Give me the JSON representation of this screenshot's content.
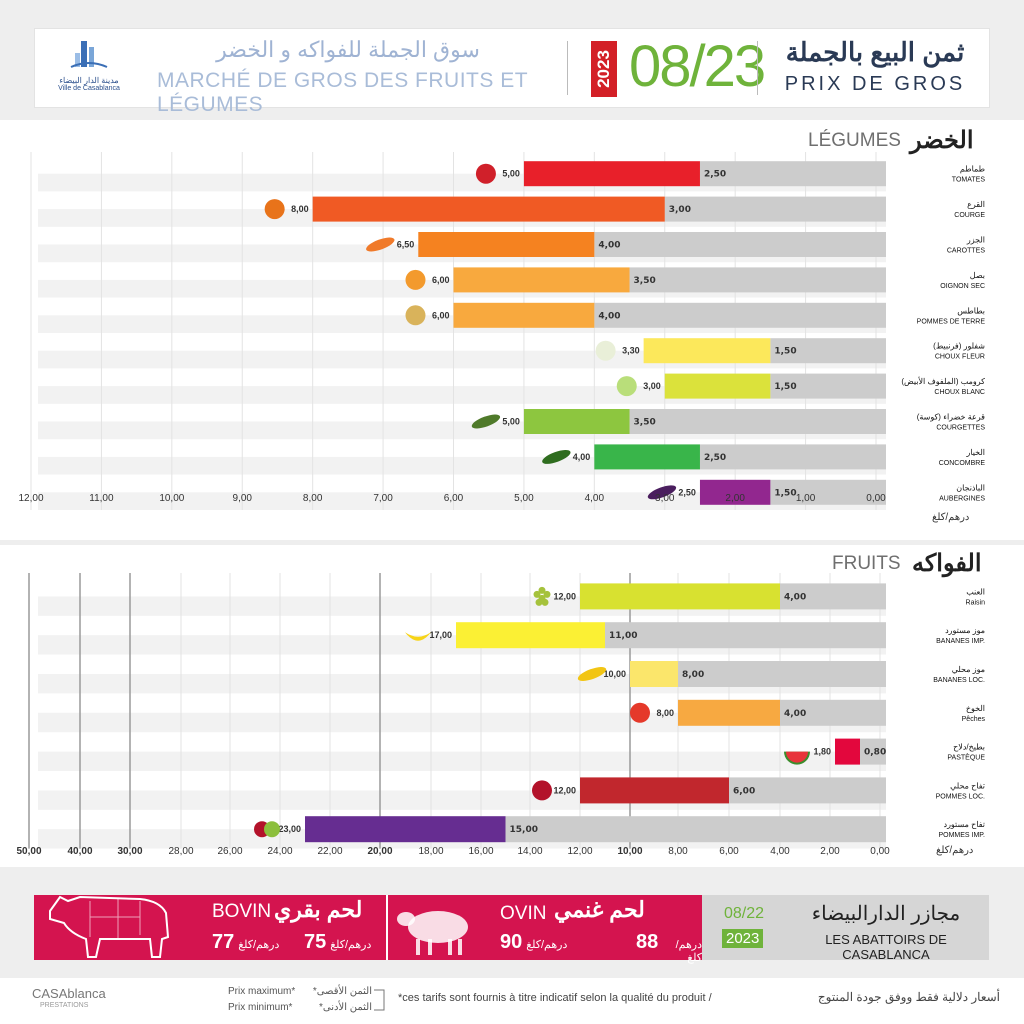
{
  "header": {
    "logo_ar": "مدينة الدار البيضاء",
    "logo_fr": "Ville de Casablanca",
    "market_ar": "سوق الجملة للفواكه و الخضر",
    "market_fr": "MARCHÉ DE GROS DES FRUITS ET LÉGUMES",
    "year": "2023",
    "date": "08/23",
    "price_ar": "ثمن البيع بالجملة",
    "price_fr": "PRIX DE GROS"
  },
  "colors": {
    "date_green": "#6fb33b",
    "year_red": "#d32027",
    "meat_red": "#d4144f",
    "track_grey": "#cccccc"
  },
  "chart_data": [
    {
      "type": "bar",
      "section_ar": "الخضر",
      "section_fr": "LÉGUMES",
      "unit": "درهم/كلغ",
      "xlim": [
        0,
        12
      ],
      "ticks": [
        "12,00",
        "11,00",
        "10,00",
        "9,00",
        "8,00",
        "7,00",
        "6,00",
        "5,00",
        "4,00",
        "3,00",
        "2,00",
        "1,00",
        "0,00"
      ],
      "categories": [
        {
          "ar": "طماطم",
          "fr": "TOMATES",
          "max": 5.0,
          "min": 2.5,
          "max_label": "5,00",
          "min_label": "2,50",
          "color": "#e8202a",
          "icon": "tomato-icon"
        },
        {
          "ar": "القرع",
          "fr": "COURGE",
          "max": 8.0,
          "min": 3.0,
          "max_label": "8,00",
          "min_label": "3,00",
          "color": "#f05a24",
          "icon": "pumpkin-icon"
        },
        {
          "ar": "الجزر",
          "fr": "CAROTTES",
          "max": 6.5,
          "min": 4.0,
          "max_label": "6,50",
          "min_label": "4,00",
          "color": "#f58220",
          "icon": "carrot-icon"
        },
        {
          "ar": "بصل",
          "fr": "OIGNON SEC",
          "max": 6.0,
          "min": 3.5,
          "max_label": "6,00",
          "min_label": "3,50",
          "color": "#f8a93e",
          "icon": "onion-icon"
        },
        {
          "ar": "بطاطس",
          "fr": "POMMES DE TERRE",
          "max": 6.0,
          "min": 4.0,
          "max_label": "6,00",
          "min_label": "4,00",
          "color": "#f8a93e",
          "icon": "potato-icon"
        },
        {
          "ar": "شفلور (فرنبيط)",
          "fr": "CHOUX FLEUR",
          "max": 3.3,
          "min": 1.5,
          "max_label": "3,30",
          "min_label": "1,50",
          "color": "#fce85b",
          "icon": "cauliflower-icon"
        },
        {
          "ar": "كرومب (الملفوف الأبيض)",
          "fr": "CHOUX BLANC",
          "max": 3.0,
          "min": 1.5,
          "max_label": "3,00",
          "min_label": "1,50",
          "color": "#dbe23b",
          "icon": "cabbage-icon"
        },
        {
          "ar": "قرعة خضراء (كوسة)",
          "fr": "COURGETTES",
          "max": 5.0,
          "min": 3.5,
          "max_label": "5,00",
          "min_label": "3,50",
          "color": "#8dc63f",
          "icon": "zucchini-icon"
        },
        {
          "ar": "الخيار",
          "fr": "CONCOMBRE",
          "max": 4.0,
          "min": 2.5,
          "max_label": "4,00",
          "min_label": "2,50",
          "color": "#39b54a",
          "icon": "cucumber-icon"
        },
        {
          "ar": "الباذنجان",
          "fr": "AUBERGINES",
          "max": 2.5,
          "min": 1.5,
          "max_label": "2,50",
          "min_label": "1,50",
          "color": "#92278f",
          "icon": "eggplant-icon"
        }
      ]
    },
    {
      "type": "bar",
      "section_ar": "الفواكه",
      "section_fr": "FRUITS",
      "unit": "درهم/كلغ",
      "xlim": [
        0,
        50
      ],
      "ticks": [
        "50,00",
        "40,00",
        "30,00",
        "28,00",
        "26,00",
        "24,00",
        "22,00",
        "20,00",
        "18,00",
        "16,00",
        "14,00",
        "12,00",
        "10,00",
        "8,00",
        "6,00",
        "4,00",
        "2,00",
        "0,00"
      ],
      "categories": [
        {
          "ar": "العنب",
          "fr": "Raisin",
          "max": 12.0,
          "min": 4.0,
          "max_label": "12,00",
          "min_label": "4,00",
          "color": "#d8e130",
          "icon": "grapes-icon"
        },
        {
          "ar": "موز مستورد",
          "fr": "BANANES IMP.",
          "max": 17.0,
          "min": 11.0,
          "max_label": "17,00",
          "min_label": "11,00",
          "color": "#fbf034",
          "icon": "bananas-icon"
        },
        {
          "ar": "موز محلي",
          "fr": "BANANES LOC.",
          "max": 10.0,
          "min": 8.0,
          "max_label": "10,00",
          "min_label": "8,00",
          "color": "#fbe66b",
          "icon": "banana-icon"
        },
        {
          "ar": "الخوخ",
          "fr": "Pêches",
          "max": 8.0,
          "min": 4.0,
          "max_label": "8,00",
          "min_label": "4,00",
          "color": "#f7a941",
          "icon": "peach-icon"
        },
        {
          "ar": "بطيخ/دلاح",
          "fr": "PASTÈQUE",
          "max": 1.8,
          "min": 0.8,
          "max_label": "1,80",
          "min_label": "0,80",
          "color": "#e3073d",
          "icon": "watermelon-icon"
        },
        {
          "ar": "تفاح محلي",
          "fr": "POMMES LOC.",
          "max": 12.0,
          "min": 6.0,
          "max_label": "12,00",
          "min_label": "6,00",
          "color": "#c1272d",
          "icon": "apple-icon"
        },
        {
          "ar": "تفاح مستورد",
          "fr": "POMMES IMP.",
          "max": 23.0,
          "min": 15.0,
          "max_label": "23,00",
          "min_label": "15,00",
          "color": "#662d91",
          "icon": "apples-icon"
        }
      ]
    }
  ],
  "meat": {
    "bovin_fr": "BOVIN",
    "bovin_ar": "لحم بقري",
    "bovin_price": "75",
    "bovin_unit": "درهم/كلغ",
    "bovin_prev": "77",
    "bovin_prev_unit": "درهم/كلغ",
    "ovin_fr": "OVIN",
    "ovin_ar": "لحم غنمي",
    "ovin_price": "88",
    "ovin_unit": "درهم/كلغ",
    "ovin_prev": "90",
    "ovin_prev_unit": "درهم/كلغ",
    "abattoir_date": "08/22",
    "abattoir_year": "2023",
    "abattoir_ar": "مجازر الدارالبيضاء",
    "abattoir_fr": "LES ABATTOIRS DE CASABLANCA"
  },
  "footer": {
    "brand": "CASAblanca",
    "brand_sub": "PRESTATIONS",
    "legend_max": "Prix maximum*",
    "legend_min": "Prix minimum*",
    "legend_max_ar": "الثمن الأقصى*",
    "legend_min_ar": "الثمن الأدنى*",
    "note_fr": "*ces tarifs sont fournis à titre indicatif selon la qualité du produit /",
    "note_ar": "أسعار دلالية فقط ووفق جودة المنتوج"
  }
}
